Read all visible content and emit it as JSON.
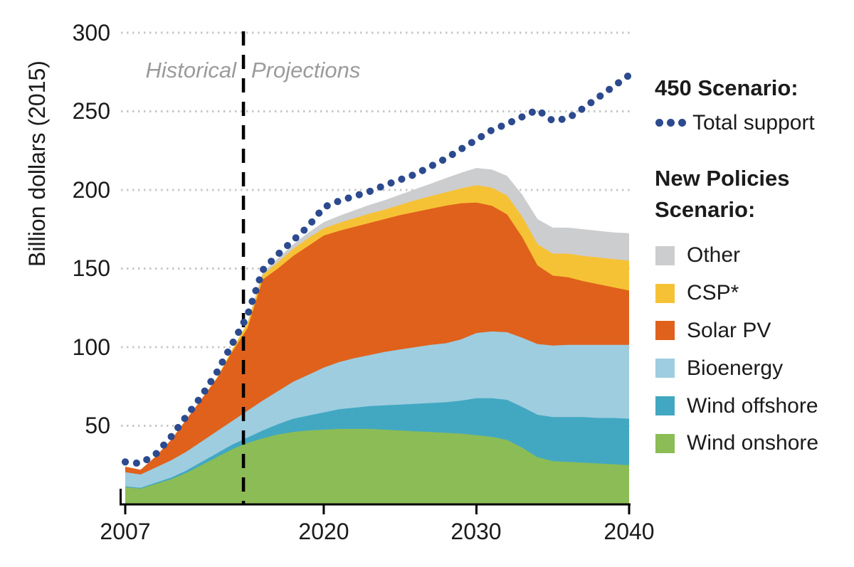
{
  "y_axis": {
    "title": "Billion dollars (2015)",
    "tick_labels": [
      "300",
      "250",
      "200",
      "150",
      "100",
      "50"
    ],
    "tick_values": [
      300,
      250,
      200,
      150,
      100,
      50
    ]
  },
  "x_axis": {
    "tick_labels": [
      "2007",
      "2020",
      "2030",
      "2040"
    ],
    "tick_values": [
      2007,
      2020,
      2030,
      2040
    ]
  },
  "annotations": {
    "historical": "Historical",
    "projections": "Projections"
  },
  "legend": {
    "group1_title": "450 Scenario:",
    "line_item": {
      "label": "Total support",
      "color": "#2c4a8e"
    },
    "group2_title": "New Policies Scenario:",
    "items": [
      {
        "label": "Other",
        "color": "#cccdce"
      },
      {
        "label": "CSP*",
        "color": "#f6c235"
      },
      {
        "label": "Solar PV",
        "color": "#e0611c"
      },
      {
        "label": "Bioenergy",
        "color": "#9ecde0"
      },
      {
        "label": "Wind offshore",
        "color": "#42a8c2"
      },
      {
        "label": "Wind onshore",
        "color": "#8cbc55"
      }
    ]
  },
  "chart_data": {
    "type": "area",
    "stacked": true,
    "title": "",
    "ylabel": "Billion dollars (2015)",
    "xlabel": "",
    "ylim": [
      0,
      300
    ],
    "xlim": [
      2007,
      2040
    ],
    "grid": "dotted-horizontal",
    "gridline_values": [
      50,
      100,
      150,
      200,
      250,
      300
    ],
    "divider_x": 2014.74,
    "x": [
      2007,
      2008,
      2009,
      2010,
      2011,
      2012,
      2013,
      2014,
      2015,
      2016,
      2017,
      2018,
      2019,
      2020,
      2021,
      2022,
      2023,
      2024,
      2025,
      2026,
      2027,
      2028,
      2029,
      2030,
      2031,
      2032,
      2033,
      2034,
      2035,
      2036,
      2037,
      2038,
      2039,
      2040
    ],
    "series": [
      {
        "name": "wind_onshore",
        "label": "Wind onshore",
        "color": "#8cbc55",
        "values": [
          11,
          10,
          13,
          16,
          20,
          25,
          30,
          35,
          39,
          42,
          44.5,
          46,
          47,
          47.5,
          48,
          48,
          48,
          47.5,
          47,
          46.5,
          46,
          45.5,
          45,
          44,
          43,
          41,
          36,
          30,
          27.5,
          27,
          26.5,
          26,
          25.5,
          25
        ]
      },
      {
        "name": "wind_offshore",
        "label": "Wind offshore",
        "color": "#42a8c2",
        "values": [
          0.5,
          0.5,
          0.8,
          1,
          1.5,
          2,
          2.5,
          3,
          3.5,
          5,
          6.5,
          8.5,
          9.5,
          11,
          12.5,
          13.5,
          14.5,
          15.5,
          16.5,
          17.5,
          18.5,
          19.5,
          21,
          23.5,
          24.5,
          25.5,
          26,
          27,
          28,
          28.5,
          29,
          29,
          29.5,
          29.5
        ]
      },
      {
        "name": "bioenergy",
        "label": "Bioenergy",
        "color": "#9ecde0",
        "values": [
          9,
          8.5,
          9.7,
          11,
          12,
          13,
          14,
          15,
          17,
          19,
          21,
          23.5,
          26,
          28.5,
          30,
          31.5,
          32.5,
          34,
          35,
          36,
          37,
          37.5,
          39,
          41.5,
          42.5,
          43,
          44,
          45,
          45.5,
          46,
          46,
          46.5,
          46.5,
          47
        ]
      },
      {
        "name": "solar_pv",
        "label": "Solar PV",
        "color": "#e0611c",
        "values": [
          3.5,
          3,
          7,
          13,
          20.5,
          27,
          33.5,
          44,
          52.5,
          77,
          78,
          80,
          82,
          84,
          83.5,
          83.5,
          84,
          84.5,
          85.5,
          86,
          86.5,
          87.5,
          86.5,
          83,
          80,
          75,
          64,
          50,
          44.5,
          43,
          40.5,
          38.5,
          36.5,
          34.5
        ]
      },
      {
        "name": "csp",
        "label": "CSP*",
        "color": "#f6c235",
        "values": [
          0,
          0,
          0,
          0,
          0,
          0,
          0.5,
          1.5,
          3,
          3,
          4,
          4.5,
          5,
          4.5,
          5,
          5.5,
          6,
          6,
          6.5,
          7.5,
          8,
          8.5,
          9.5,
          11,
          11.5,
          12,
          13,
          13.5,
          14,
          15,
          16,
          17,
          18,
          19
        ]
      },
      {
        "name": "other",
        "label": "Other",
        "color": "#cccdce",
        "values": [
          0,
          0,
          0,
          0,
          0,
          0,
          0,
          0,
          0.5,
          1.5,
          2.5,
          3,
          3.5,
          4,
          4.5,
          5,
          5.5,
          6,
          6.5,
          7,
          8,
          9,
          10,
          11,
          11.5,
          12.5,
          14,
          16,
          16.5,
          16.5,
          17,
          17,
          17,
          17.5
        ]
      }
    ],
    "line_series": {
      "name": "total_support_450",
      "label": "450 Scenario: Total support",
      "style": "dotted",
      "color": "#2c4a8e",
      "values": [
        27,
        26,
        32,
        43,
        56,
        69,
        84,
        102,
        120,
        149,
        159,
        168,
        177,
        189,
        193,
        196,
        199,
        203,
        206.5,
        210,
        215,
        220,
        226,
        232,
        238,
        242,
        246.5,
        251,
        244,
        245.5,
        252,
        259,
        266,
        273
      ]
    }
  },
  "colors": {
    "axis": "#000000",
    "gridline": "#c8c8c8",
    "divider": "#000000",
    "annotation_text": "#9b9b9b",
    "text": "#1b1b1b"
  }
}
